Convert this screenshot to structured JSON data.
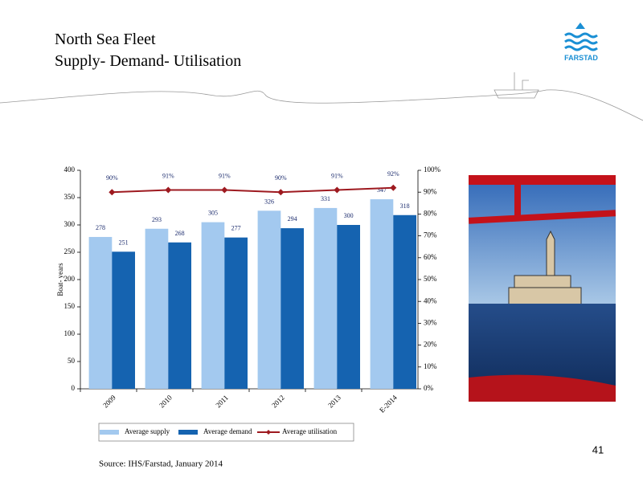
{
  "slide": {
    "title_line1": "North Sea Fleet",
    "title_line2": "Supply- Demand- Utilisation",
    "logo_text": "FARSTAD",
    "source": "Source: IHS/Farstad, January 2014",
    "page_number": "41"
  },
  "chart_data": {
    "type": "bar",
    "categories": [
      "2009",
      "2010",
      "2011",
      "2012",
      "2013",
      "E-2014"
    ],
    "y_label": "Boat- years",
    "series": [
      {
        "name": "Average supply",
        "color": "#a3c9ef",
        "values": [
          278,
          293,
          305,
          326,
          331,
          347
        ]
      },
      {
        "name": "Average demand",
        "color": "#1563b0",
        "values": [
          251,
          268,
          277,
          294,
          300,
          318
        ]
      },
      {
        "name": "Average utilisation",
        "color": "#9e1a20",
        "type": "line",
        "axis": "y2",
        "values": [
          90,
          91,
          91,
          90,
          91,
          92
        ],
        "value_labels": [
          "90%",
          "91%",
          "91%",
          "90%",
          "91%",
          "92%"
        ]
      }
    ],
    "ylim": [
      0,
      400
    ],
    "yticks": [
      0,
      50,
      100,
      150,
      200,
      250,
      300,
      350,
      400
    ],
    "y2lim": [
      0,
      100
    ],
    "y2ticks": [
      {
        "value": 0,
        "label": "0%"
      },
      {
        "value": 10,
        "label": "10%"
      },
      {
        "value": 20,
        "label": "20%"
      },
      {
        "value": 30,
        "label": "30%"
      },
      {
        "value": 40,
        "label": "40%"
      },
      {
        "value": 50,
        "label": "50%"
      },
      {
        "value": 60,
        "label": "60%"
      },
      {
        "value": 70,
        "label": "70%"
      },
      {
        "value": 80,
        "label": "80%"
      },
      {
        "value": 90,
        "label": "90%"
      },
      {
        "value": 100,
        "label": "100%"
      }
    ],
    "legend": "bottom"
  }
}
